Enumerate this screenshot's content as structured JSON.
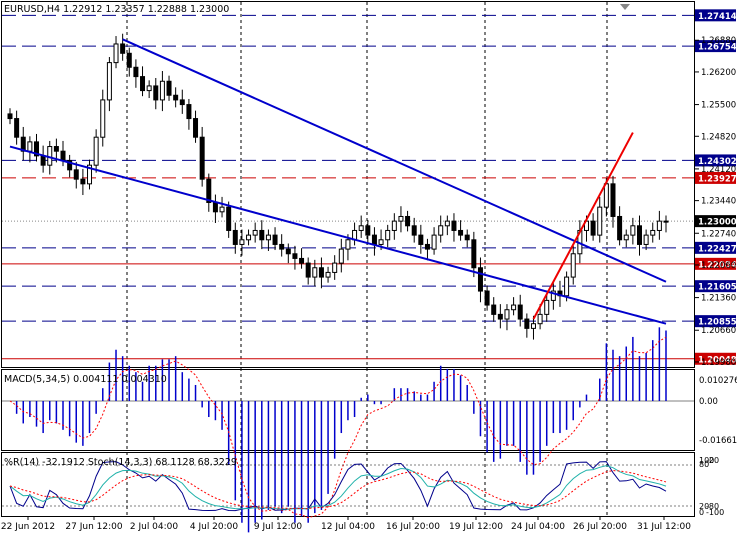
{
  "colors": {
    "background": "#ffffff",
    "axis": "#000000",
    "grid": "#000000",
    "candles": "#000000",
    "blue_level": "#00008b",
    "red_level": "#cc0000",
    "trend_blue": "#0000cc",
    "trend_red": "#ee0000",
    "macd_hist": "#0000cc",
    "macd_signal": "#ff0000",
    "wpr": "#00008b",
    "stoch_main": "#20b2aa",
    "stoch_signal": "#ff0000",
    "price_label_bg_blue": "#00008b",
    "price_label_bg_red": "#cc0000",
    "price_label_bg_current": "#000000"
  },
  "title": "EURUSD,H4  1.22912 1.23357 1.22888 1.23000",
  "macd_title": "MACD(5,34,5) 0.004111 0.004310",
  "osc_title": "%R(14) -32.1912  Stoch(14,3,3) 68.1128 68.3229",
  "price_axis": {
    "ticks": [
      "1.26880",
      "1.26200",
      "1.25500",
      "1.24820",
      "1.24120",
      "1.23440",
      "1.22740",
      "1.22060",
      "1.21360",
      "1.20660",
      "1.19980"
    ]
  },
  "price_levels": [
    {
      "value": "1.27414",
      "color": "blue",
      "style": "dash"
    },
    {
      "value": "1.26754",
      "color": "blue",
      "style": "dash"
    },
    {
      "value": "1.24302",
      "color": "blue",
      "style": "dash"
    },
    {
      "value": "1.23927",
      "color": "red",
      "style": "dash"
    },
    {
      "value": "1.23000",
      "color": "current",
      "style": "dot"
    },
    {
      "value": "1.22427",
      "color": "blue",
      "style": "dash"
    },
    {
      "value": "1.22084",
      "color": "red",
      "style": "solid"
    },
    {
      "value": "1.21605",
      "color": "blue",
      "style": "dash"
    },
    {
      "value": "1.20855",
      "color": "blue",
      "style": "dash"
    },
    {
      "value": "1.20048",
      "color": "red",
      "style": "solid"
    }
  ],
  "macd_axis": {
    "ticks": [
      "0.010276",
      "0.00",
      "-0.01661"
    ]
  },
  "osc_axis": {
    "ticks": [
      "100",
      "80",
      "20",
      "0",
      "-20",
      "-80",
      "-100"
    ]
  },
  "time_axis": {
    "labels": [
      "22 Jun 2012",
      "27 Jun 12:00",
      "2 Jul 04:00",
      "4 Jul 20:00",
      "9 Jul 12:00",
      "12 Jul 04:00",
      "16 Jul 20:00",
      "19 Jul 12:00",
      "24 Jul 04:00",
      "26 Jul 20:00",
      "31 Jul 12:00"
    ]
  },
  "chart_data": {
    "type": "candlestick",
    "symbol": "EURUSD",
    "timeframe": "H4",
    "ohlc_header": {
      "open": 1.22912,
      "high": 1.23357,
      "low": 1.22888,
      "close": 1.23
    },
    "close_path": [
      1.252,
      1.248,
      1.245,
      1.247,
      1.244,
      1.242,
      1.246,
      1.245,
      1.243,
      1.241,
      1.239,
      1.238,
      1.242,
      1.248,
      1.256,
      1.264,
      1.268,
      1.266,
      1.263,
      1.261,
      1.258,
      1.259,
      1.256,
      1.26,
      1.257,
      1.256,
      1.255,
      1.252,
      1.248,
      1.239,
      1.234,
      1.232,
      1.233,
      1.228,
      1.225,
      1.226,
      1.227,
      1.228,
      1.226,
      1.227,
      1.225,
      1.224,
      1.223,
      1.222,
      1.221,
      1.218,
      1.22,
      1.218,
      1.219,
      1.221,
      1.224,
      1.226,
      1.228,
      1.229,
      1.227,
      1.225,
      1.226,
      1.228,
      1.23,
      1.231,
      1.229,
      1.227,
      1.225,
      1.224,
      1.227,
      1.229,
      1.23,
      1.228,
      1.227,
      1.226,
      1.22,
      1.215,
      1.212,
      1.21,
      1.209,
      1.211,
      1.212,
      1.209,
      1.207,
      1.208,
      1.21,
      1.213,
      1.215,
      1.214,
      1.218,
      1.223,
      1.228,
      1.23,
      1.227,
      1.233,
      1.238,
      1.231,
      1.226,
      1.227,
      1.229,
      1.225,
      1.227,
      1.228,
      1.23,
      1.23
    ],
    "trend_lines": [
      {
        "color": "blue",
        "from": {
          "bar": 0,
          "price": 1.246
        },
        "to": {
          "bar": 99,
          "price": 1.208
        }
      },
      {
        "color": "blue",
        "from": {
          "bar": 17,
          "price": 1.269
        },
        "to": {
          "bar": 99,
          "price": 1.217
        }
      },
      {
        "color": "red",
        "from": {
          "bar": 79,
          "price": 1.209
        },
        "to": {
          "bar": 94,
          "price": 1.249
        }
      }
    ]
  }
}
